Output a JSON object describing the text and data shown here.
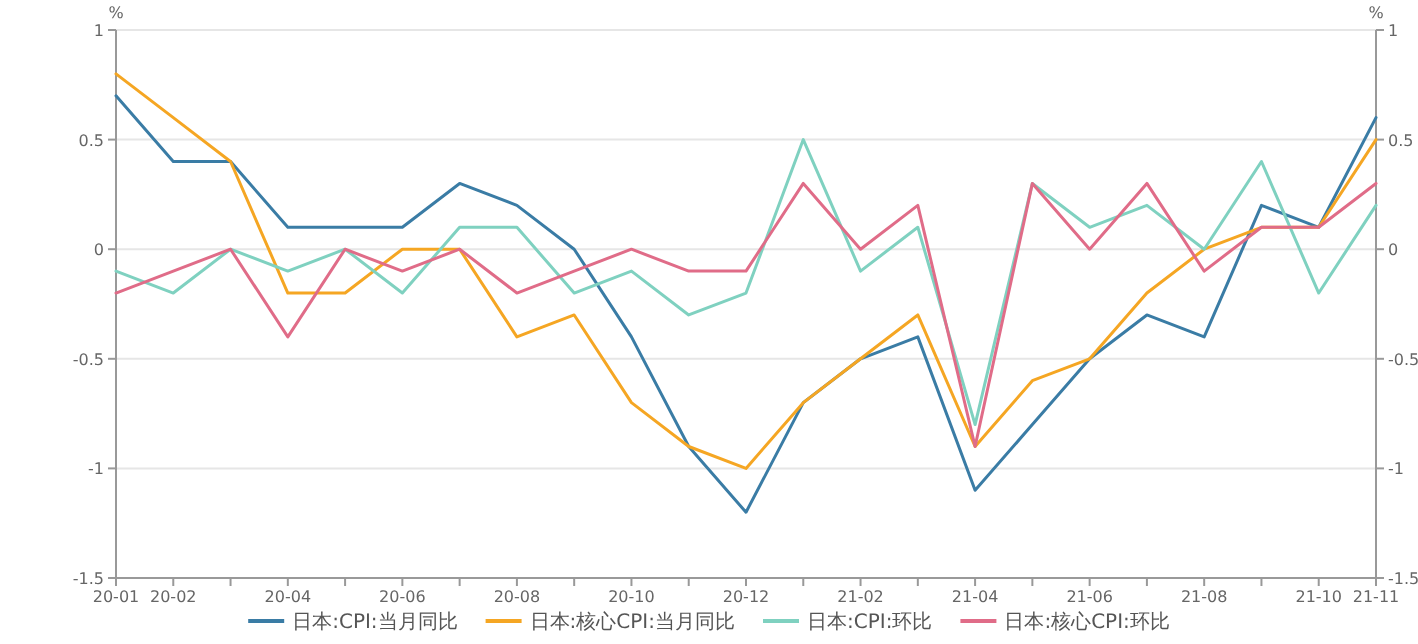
{
  "chart_data": {
    "type": "line",
    "ylabel": "%",
    "y2label": "%",
    "categories": [
      "20-01",
      "20-02",
      null,
      "20-04",
      null,
      "20-06",
      null,
      "20-08",
      null,
      "20-10",
      null,
      "20-12",
      null,
      "21-02",
      null,
      "21-04",
      null,
      "21-06",
      null,
      "21-08",
      null,
      "21-10",
      "21-11"
    ],
    "series": [
      {
        "name": "日本:CPI:当月同比",
        "color": "#3a7ca5",
        "values": [
          0.7,
          0.4,
          0.4,
          0.1,
          0.1,
          0.1,
          0.3,
          0.2,
          0,
          -0.4,
          -0.9,
          -1.2,
          -0.7,
          -0.5,
          -0.4,
          -1.1,
          -0.8,
          -0.5,
          -0.3,
          -0.4,
          0.2,
          0.1,
          0.6
        ]
      },
      {
        "name": "日本:核心CPI:当月同比",
        "color": "#f5a623",
        "values": [
          0.8,
          0.6,
          0.4,
          -0.2,
          -0.2,
          0,
          0,
          -0.4,
          -0.3,
          -0.7,
          -0.9,
          -1.0,
          -0.7,
          -0.5,
          -0.3,
          -0.9,
          -0.6,
          -0.5,
          -0.2,
          0,
          0.1,
          0.1,
          0.5
        ]
      },
      {
        "name": "日本:CPI:环比",
        "color": "#7fd1c0",
        "values": [
          -0.1,
          -0.2,
          0,
          -0.1,
          0,
          -0.2,
          0.1,
          0.1,
          -0.2,
          -0.1,
          -0.3,
          -0.2,
          0.5,
          -0.1,
          0.1,
          -0.8,
          0.3,
          0.1,
          0.2,
          0,
          0.4,
          -0.2,
          0.2
        ]
      },
      {
        "name": "日本:核心CPI:环比",
        "color": "#e06c88",
        "values": [
          -0.2,
          -0.1,
          0,
          -0.4,
          0,
          -0.1,
          0,
          -0.2,
          -0.1,
          0,
          -0.1,
          -0.1,
          0.3,
          0,
          0.2,
          -0.9,
          0.3,
          0,
          0.3,
          -0.1,
          0.1,
          0.1,
          0.3
        ]
      }
    ],
    "ylim": [
      -1.5,
      1
    ],
    "yticks": [
      -1.5,
      -1,
      -0.5,
      0,
      0.5,
      1
    ],
    "y2lim": [
      -1.5,
      1
    ],
    "y2ticks": [
      -1.5,
      -1,
      -0.5,
      0,
      0.5,
      1
    ],
    "grid": "y",
    "legend": "bottom",
    "marker": "none",
    "line_style": "solid"
  }
}
